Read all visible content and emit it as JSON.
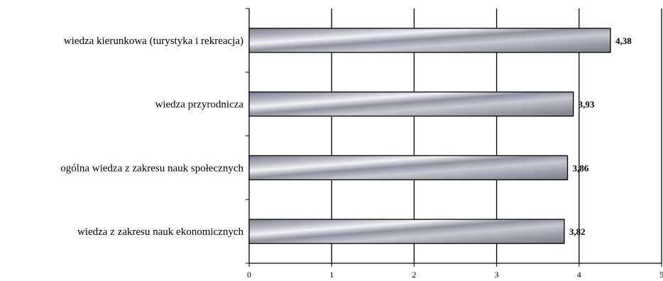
{
  "chart_data": {
    "type": "bar",
    "orientation": "horizontal",
    "categories": [
      "wiedza kierunkowa (turystyka i rekreacja)",
      "wiedza przyrodnicza",
      "ogólna wiedza z zakresu nauk społecznych",
      "wiedza z zakresu nauk ekonomicznych"
    ],
    "values": [
      4.38,
      3.93,
      3.86,
      3.82
    ],
    "value_labels": [
      "4,38",
      "3,93",
      "3,86",
      "3,82"
    ],
    "x_ticks": [
      "0",
      "1",
      "2",
      "3",
      "4",
      "5"
    ],
    "xlim": [
      0,
      5
    ],
    "grid": "vertical",
    "legend": "none",
    "bar_color": "#a9aab5",
    "title": "",
    "xlabel": "",
    "ylabel": ""
  }
}
